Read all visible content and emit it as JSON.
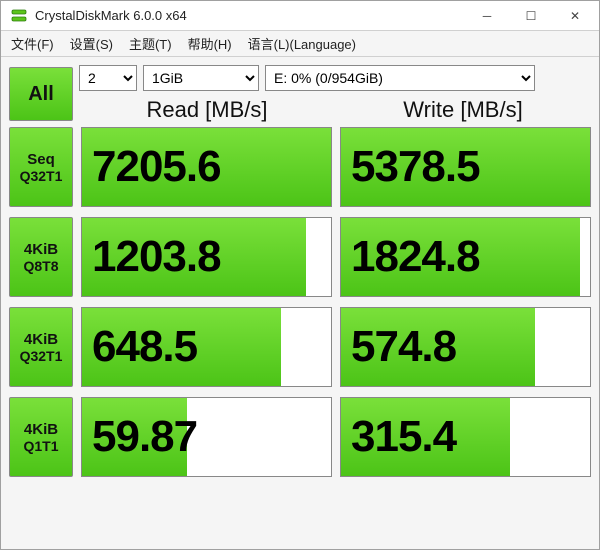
{
  "window": {
    "title": "CrystalDiskMark 6.0.0 x64"
  },
  "menus": {
    "file": "文件(F)",
    "settings": "设置(S)",
    "theme": "主题(T)",
    "help": "帮助(H)",
    "language": "语言(L)(Language)"
  },
  "toolbar": {
    "all_label": "All",
    "count_value": "2",
    "size_value": "1GiB",
    "drive_value": "E: 0% (0/954GiB)"
  },
  "headers": {
    "read": "Read [MB/s]",
    "write": "Write [MB/s]"
  },
  "tests": [
    {
      "name1": "Seq",
      "name2": "Q32T1",
      "read": "7205.6",
      "write": "5378.5",
      "read_pct": 100,
      "write_pct": 100
    },
    {
      "name1": "4KiB",
      "name2": "Q8T8",
      "read": "1203.8",
      "write": "1824.8",
      "read_pct": 90,
      "write_pct": 96
    },
    {
      "name1": "4KiB",
      "name2": "Q32T1",
      "read": "648.5",
      "write": "574.8",
      "read_pct": 80,
      "write_pct": 78
    },
    {
      "name1": "4KiB",
      "name2": "Q1T1",
      "read": "59.87",
      "write": "315.4",
      "read_pct": 42,
      "write_pct": 68
    }
  ],
  "colors": {
    "accent_top": "#7ae03a",
    "accent_bottom": "#4cc417",
    "window_bg": "#f5f5f5",
    "border": "#888888"
  }
}
